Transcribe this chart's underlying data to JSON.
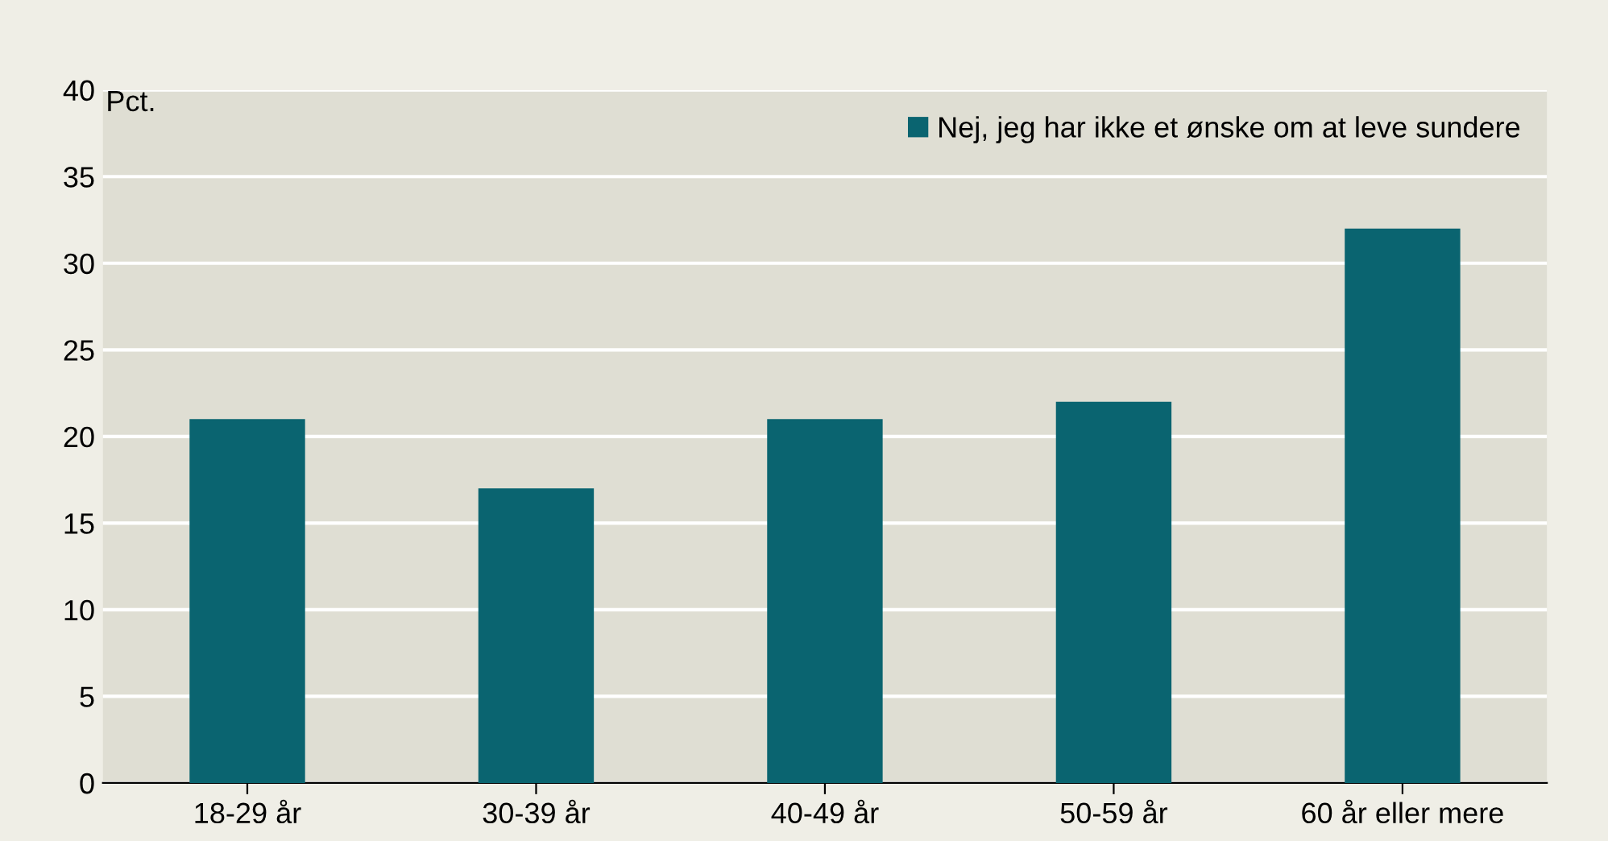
{
  "chart_data": {
    "type": "bar",
    "ylabel": "Pct.",
    "categories": [
      "18-29 år",
      "30-39 år",
      "40-49 år",
      "50-59 år",
      "60 år eller mere"
    ],
    "series": [
      {
        "name": "Nej, jeg har ikke et ønske om at leve sundere",
        "color": "#0a6470",
        "values": [
          21,
          17,
          21,
          22,
          32
        ]
      }
    ],
    "ylim": [
      0,
      40
    ],
    "yticks": [
      0,
      5,
      10,
      15,
      20,
      25,
      30,
      35,
      40
    ],
    "grid": "y",
    "legend": "top right"
  }
}
